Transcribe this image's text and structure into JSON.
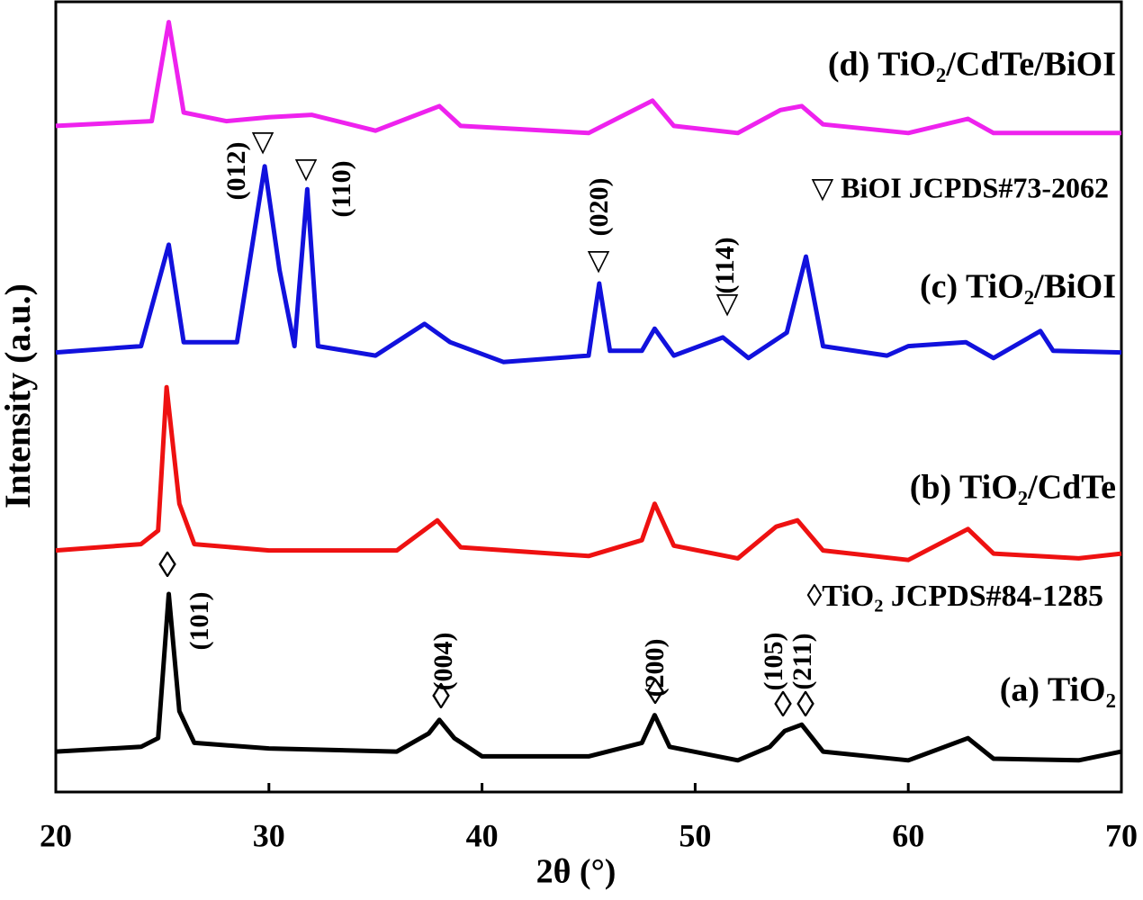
{
  "chart_data": {
    "type": "line",
    "xlabel": "2θ (°)",
    "ylabel": "Intensity (a.u.)",
    "xlim": [
      20,
      70
    ],
    "xticks": [
      20,
      30,
      40,
      50,
      60,
      70
    ],
    "ylim": [
      0,
      100
    ],
    "series": [
      {
        "name": "(a) TiO₂",
        "color": "#000000",
        "x": [
          20,
          24,
          24.8,
          25.3,
          25.8,
          26.5,
          30,
          36,
          37.5,
          38,
          38.7,
          40,
          45,
          47.5,
          48.1,
          48.8,
          52,
          53.5,
          54.2,
          55,
          56,
          60,
          62.8,
          64,
          68,
          70
        ],
        "values": [
          5.1,
          5.7,
          6.8,
          25,
          10.2,
          6.2,
          5.5,
          5.1,
          7.4,
          9.1,
          6.8,
          4.5,
          4.5,
          6.2,
          9.7,
          5.7,
          4.0,
          5.7,
          7.7,
          8.5,
          5.1,
          4.0,
          6.8,
          4.2,
          4.0,
          5.1
        ]
      },
      {
        "name": "(b) TiO₂/CdTe",
        "color": "#ee1111",
        "x": [
          20,
          24,
          24.8,
          25.2,
          25.8,
          26.5,
          30,
          36,
          37.9,
          39,
          45,
          47.5,
          48.1,
          49,
          52,
          53.8,
          54.8,
          56,
          60,
          62.8,
          64,
          68,
          70
        ],
        "values": [
          30.5,
          31.3,
          33,
          51.1,
          36.4,
          31.3,
          30.5,
          30.5,
          34.3,
          30.9,
          29.8,
          31.8,
          36.4,
          31.1,
          29.5,
          33.5,
          34.3,
          30.5,
          29.3,
          33.2,
          30.1,
          29.5,
          30.1
        ]
      },
      {
        "name": "(c) TiO₂/BiOI",
        "color": "#1111dd",
        "x": [
          20,
          24,
          25.3,
          26,
          28.5,
          29.8,
          30.5,
          31.2,
          31.8,
          32.3,
          35,
          37.3,
          38.5,
          41,
          45,
          45.5,
          46,
          47.5,
          48.1,
          49,
          51.3,
          52.5,
          54.3,
          55.2,
          56,
          59,
          60,
          62.7,
          64,
          66.2,
          66.8,
          70
        ],
        "values": [
          55.5,
          56.3,
          69.1,
          56.8,
          56.8,
          79,
          65.9,
          56.3,
          76.1,
          56.3,
          55.1,
          59.1,
          56.8,
          54.3,
          55.1,
          64.2,
          55.7,
          55.7,
          58.5,
          55.1,
          57.4,
          54.8,
          58,
          67.6,
          56.3,
          55.1,
          56.3,
          56.8,
          54.8,
          58.2,
          55.7,
          55.5
        ]
      },
      {
        "name": "(d) TiO₂/CdTe/BiOI",
        "color": "#ee22ee",
        "x": [
          20,
          24.5,
          25.3,
          26,
          28,
          30,
          32,
          35,
          38,
          39,
          45,
          48,
          49,
          52,
          54,
          55,
          56,
          60,
          62.8,
          64,
          70
        ],
        "values": [
          84.1,
          84.7,
          97.2,
          85.8,
          84.7,
          85.2,
          85.5,
          83.5,
          86.6,
          84.1,
          83.2,
          87.3,
          84.1,
          83.2,
          86.1,
          86.6,
          84.3,
          83.2,
          85,
          83.2,
          83.2
        ]
      }
    ],
    "annotations": [
      "(012)",
      "(110)",
      "(020)",
      "(114)",
      "(101)",
      "(004)",
      "(200)",
      "(105)",
      "(211)",
      "▽",
      "▽",
      "▽",
      "▽",
      "◊",
      "◊",
      "◊",
      "◊",
      "◊",
      "▽ BiOI JCPDS#73-2062",
      "◊TiO₂ JCPDS#84-1285"
    ]
  }
}
